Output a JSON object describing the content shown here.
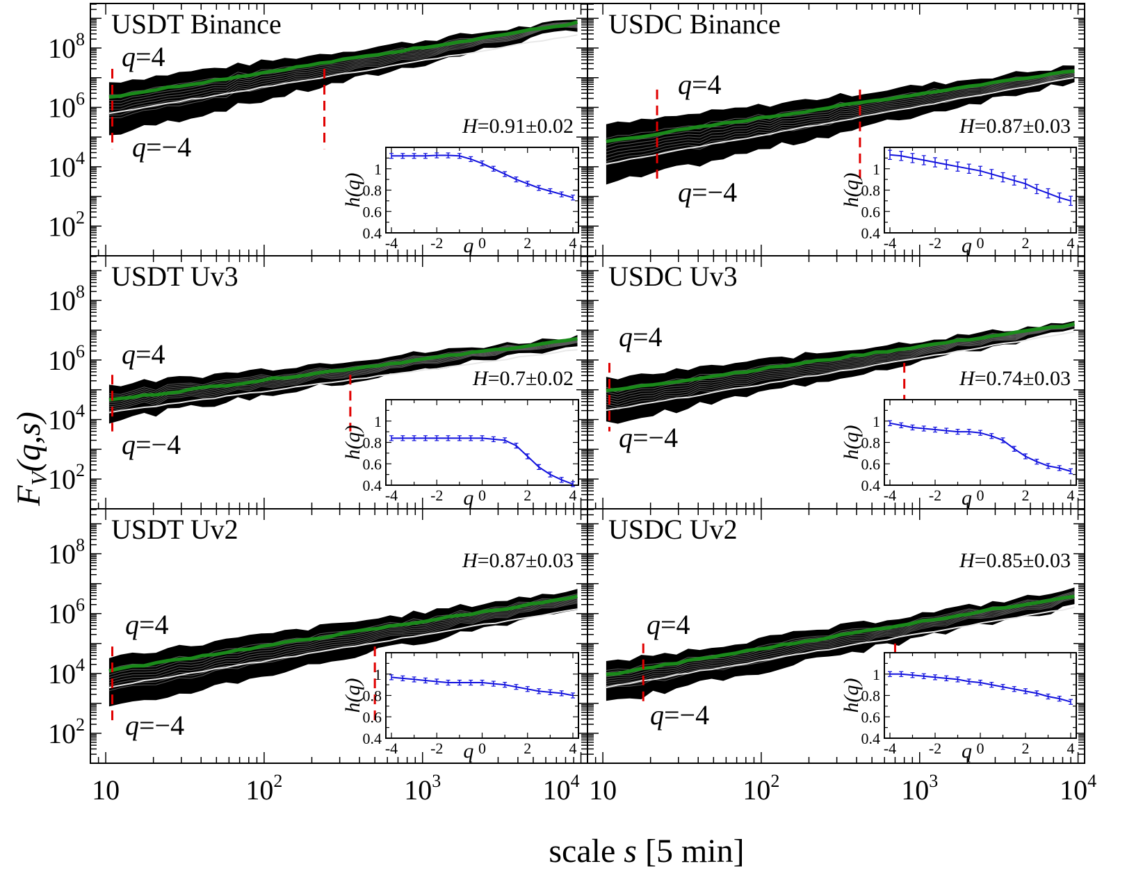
{
  "figure": {
    "xlabel_prefix": "scale ",
    "xlabel_var": "s",
    "xlabel_unit": " [5 min]",
    "ylabel_F": "F",
    "ylabel_sub": "V",
    "ylabel_args": "(q,s)",
    "x_tick_base": "10",
    "x_tick_exps": [
      "",
      "2",
      "3",
      "4"
    ],
    "y_tick_base": "10",
    "y_tick_exps": [
      "2",
      "4",
      "6",
      "8"
    ],
    "q_symbol": "q",
    "q_high_value": "=4",
    "q_low_value": "=−4",
    "h_label": "h(q)",
    "inset_xlabel": "q",
    "inset_x_ticks": [
      "-4",
      "-2",
      "0",
      "2",
      "4"
    ],
    "inset_y_ticks": [
      "0.4",
      "0.6",
      "0.8",
      "1"
    ]
  },
  "chart_data": [
    {
      "type": "line",
      "title": "USDT Binance",
      "hurst_label": "H",
      "hurst_value": "=0.91±0.02",
      "H": 0.91,
      "xlim": [
        8,
        11000
      ],
      "ylim_log10": [
        1,
        9.5
      ],
      "band_log10": {
        "top": [
          6.85,
          8.95
        ],
        "bottom": [
          5.05,
          8.65
        ],
        "q4": [
          6.35,
          8.85
        ],
        "q2": [
          5.8,
          8.45
        ]
      },
      "crossovers_s": [
        11,
        240
      ],
      "crossover_span_log10": [
        4.6,
        7.3
      ],
      "h_q": {
        "q": [
          -4,
          -3.5,
          -3,
          -2.5,
          -2,
          -1.5,
          -1,
          -0.5,
          0,
          0.5,
          1,
          1.5,
          2,
          2.5,
          3,
          3.5,
          4
        ],
        "h": [
          1.12,
          1.12,
          1.12,
          1.12,
          1.125,
          1.125,
          1.12,
          1.09,
          1.05,
          1.0,
          0.95,
          0.9,
          0.86,
          0.82,
          0.79,
          0.76,
          0.73
        ],
        "err": 0.01
      }
    },
    {
      "type": "line",
      "title": "USDC Binance",
      "hurst_label": "H",
      "hurst_value": "=0.87±0.03",
      "H": 0.87,
      "xlim": [
        8,
        11000
      ],
      "ylim_log10": [
        1,
        9.5
      ],
      "band_log10": {
        "top": [
          5.4,
          7.4
        ],
        "bottom": [
          3.4,
          6.9
        ],
        "q4": [
          4.85,
          7.25
        ],
        "q2": [
          4.1,
          7.0
        ]
      },
      "crossovers_s": [
        22,
        420
      ],
      "crossover_span_log10": [
        3.6,
        6.6
      ],
      "h_q": {
        "q": [
          -4,
          -3.5,
          -3,
          -2.5,
          -2,
          -1.5,
          -1,
          -0.5,
          0,
          0.5,
          1,
          1.5,
          2,
          2.5,
          3,
          3.5,
          4
        ],
        "h": [
          1.13,
          1.12,
          1.1,
          1.08,
          1.06,
          1.04,
          1.02,
          1.0,
          0.98,
          0.95,
          0.92,
          0.89,
          0.86,
          0.81,
          0.77,
          0.73,
          0.7
        ],
        "err": 0.03
      }
    },
    {
      "type": "line",
      "title": "USDT Uv3",
      "hurst_label": "H",
      "hurst_value": "=0.7±0.02",
      "H": 0.7,
      "xlim": [
        8,
        11000
      ],
      "ylim_log10": [
        1,
        9.5
      ],
      "band_log10": {
        "top": [
          5.15,
          6.8
        ],
        "bottom": [
          3.95,
          6.5
        ],
        "q4": [
          4.65,
          6.7
        ],
        "q2": [
          4.25,
          6.35
        ]
      },
      "crossovers_s": [
        11,
        350
      ],
      "crossover_span_log10": [
        3.6,
        5.5
      ],
      "h_q": {
        "q": [
          -4,
          -3.5,
          -3,
          -2.5,
          -2,
          -1.5,
          -1,
          -0.5,
          0,
          0.5,
          1,
          1.5,
          2,
          2.5,
          3,
          3.5,
          4
        ],
        "h": [
          0.84,
          0.84,
          0.84,
          0.84,
          0.84,
          0.84,
          0.84,
          0.84,
          0.84,
          0.83,
          0.82,
          0.77,
          0.67,
          0.57,
          0.5,
          0.45,
          0.41
        ],
        "err": 0.01
      }
    },
    {
      "type": "line",
      "title": "USDC Uv3",
      "hurst_label": "H",
      "hurst_value": "=0.74±0.03",
      "H": 0.74,
      "xlim": [
        8,
        11000
      ],
      "ylim_log10": [
        1,
        9.5
      ],
      "band_log10": {
        "top": [
          5.35,
          7.3
        ],
        "bottom": [
          3.85,
          7.0
        ],
        "q4": [
          4.95,
          7.2
        ],
        "q2": [
          4.3,
          6.95
        ]
      },
      "crossovers_s": [
        11,
        800
      ],
      "crossover_span_log10": [
        3.6,
        5.9
      ],
      "h_q": {
        "q": [
          -4,
          -3.5,
          -3,
          -2.5,
          -2,
          -1.5,
          -1,
          -0.5,
          0,
          0.5,
          1,
          1.5,
          2,
          2.5,
          3,
          3.5,
          4
        ],
        "h": [
          0.98,
          0.96,
          0.94,
          0.93,
          0.92,
          0.91,
          0.9,
          0.9,
          0.89,
          0.86,
          0.82,
          0.74,
          0.67,
          0.62,
          0.58,
          0.56,
          0.53
        ],
        "err": 0.01
      }
    },
    {
      "type": "line",
      "title": "USDT Uv2",
      "hurst_label": "H",
      "hurst_value": "=0.87±0.03",
      "H": 0.87,
      "xlim": [
        8,
        11000
      ],
      "ylim_log10": [
        1,
        9.5
      ],
      "band_log10": {
        "top": [
          4.55,
          6.8
        ],
        "bottom": [
          2.8,
          6.2
        ],
        "q4": [
          4.1,
          6.55
        ],
        "q2": [
          3.55,
          6.15
        ]
      },
      "crossovers_s": [
        11,
        500
      ],
      "crossover_span_log10": [
        2.4,
        4.9
      ],
      "h_q": {
        "q": [
          -4,
          -3.5,
          -3,
          -2.5,
          -2,
          -1.5,
          -1,
          -0.5,
          0,
          0.5,
          1,
          1.5,
          2,
          2.5,
          3,
          3.5,
          4
        ],
        "h": [
          0.97,
          0.96,
          0.95,
          0.94,
          0.93,
          0.92,
          0.92,
          0.92,
          0.92,
          0.91,
          0.9,
          0.88,
          0.86,
          0.84,
          0.83,
          0.82,
          0.8
        ],
        "err": 0.01
      }
    },
    {
      "type": "line",
      "title": "USDC Uv2",
      "hurst_label": "H",
      "hurst_value": "=0.85±0.03",
      "H": 0.85,
      "xlim": [
        8,
        11000
      ],
      "ylim_log10": [
        1,
        9.5
      ],
      "band_log10": {
        "top": [
          4.35,
          6.8
        ],
        "bottom": [
          3.0,
          6.25
        ],
        "q4": [
          3.95,
          6.6
        ],
        "q2": [
          3.55,
          6.2
        ]
      },
      "crossovers_s": [
        18,
        700
      ],
      "crossover_span_log10": [
        3.0,
        5.0
      ],
      "h_q": {
        "q": [
          -4,
          -3.5,
          -3,
          -2.5,
          -2,
          -1.5,
          -1,
          -0.5,
          0,
          0.5,
          1,
          1.5,
          2,
          2.5,
          3,
          3.5,
          4
        ],
        "h": [
          1.0,
          1.0,
          0.99,
          0.98,
          0.97,
          0.96,
          0.95,
          0.93,
          0.92,
          0.9,
          0.88,
          0.86,
          0.84,
          0.82,
          0.79,
          0.77,
          0.74
        ],
        "err": 0.01
      }
    }
  ]
}
